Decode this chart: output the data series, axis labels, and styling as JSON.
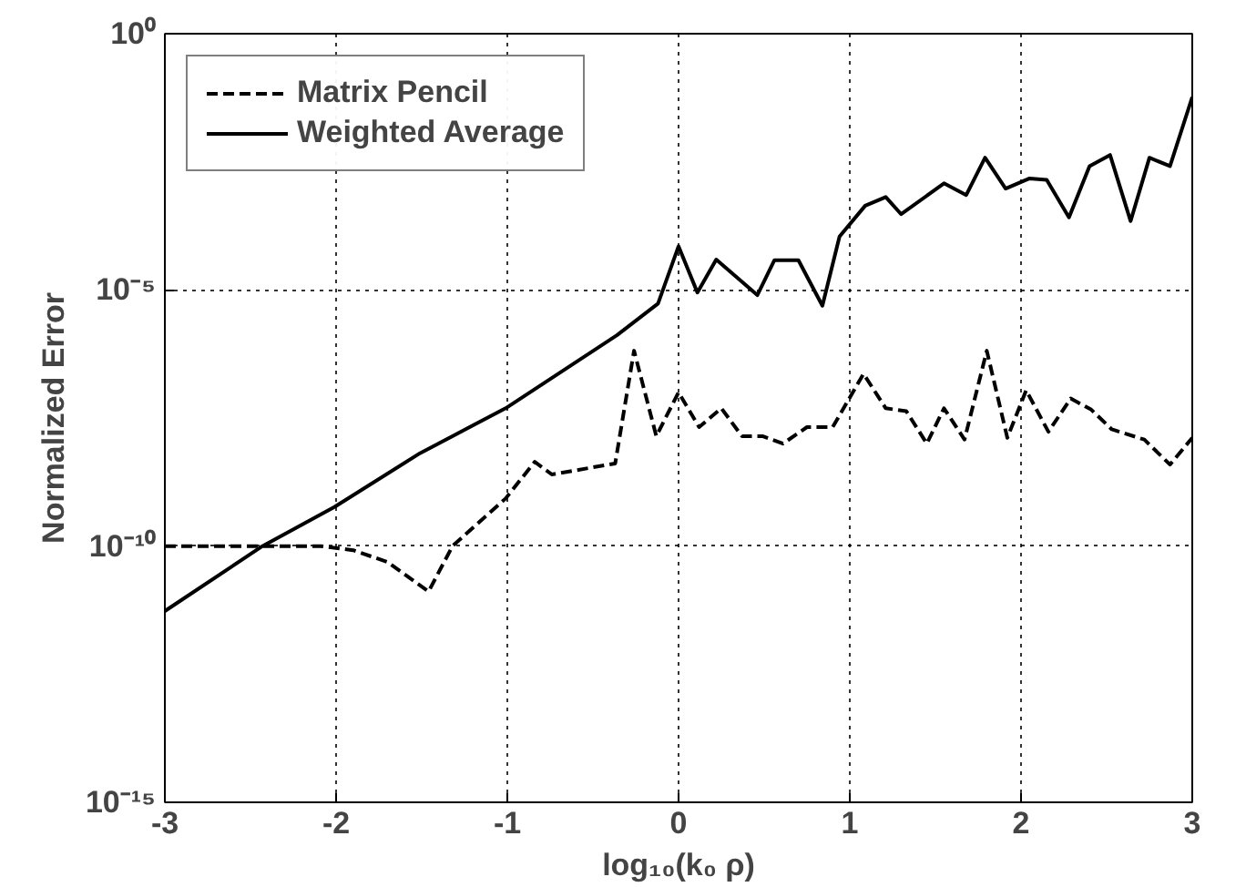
{
  "chart_data": {
    "type": "line",
    "xlabel": "log₁₀(k₀ ρ)",
    "ylabel": "Normalized Error",
    "log": "y",
    "grid": true,
    "legend": "top left",
    "xlim": [
      -3,
      3
    ],
    "xticks": [
      -3,
      -2,
      -1,
      0,
      1,
      2,
      3
    ],
    "ylim": [
      1e-15,
      1
    ],
    "yticks": [
      {
        "value": 1e-15,
        "label": "10⁻¹⁵"
      },
      {
        "value": 1e-10,
        "label": "10⁻¹⁰"
      },
      {
        "value": 1e-05,
        "label": "10⁻⁵"
      },
      {
        "value": 1,
        "label": "10⁰"
      }
    ],
    "series": [
      {
        "name": "Matrix Pencil",
        "color": "#000000",
        "line_style": "dashed",
        "x": [
          -3,
          -2.09,
          -1.9,
          -1.7,
          -1.46,
          -1.32,
          -1.01,
          -0.84,
          -0.74,
          -0.37,
          -0.26,
          -0.13,
          0.0,
          0.12,
          0.25,
          0.37,
          0.49,
          0.61,
          0.75,
          0.9,
          1.08,
          1.21,
          1.33,
          1.45,
          1.55,
          1.67,
          1.8,
          1.92,
          2.03,
          2.16,
          2.29,
          2.41,
          2.53,
          2.72,
          2.87,
          3.0
        ],
        "values": [
          1e-10,
          1e-10,
          8.3e-11,
          4.9e-11,
          1.3e-11,
          1e-10,
          8.5e-10,
          4.4e-09,
          2.5e-09,
          4.1e-09,
          6.5e-07,
          1.4e-08,
          1e-07,
          2.1e-08,
          4.9e-08,
          1.4e-08,
          1.4e-08,
          1e-08,
          2.1e-08,
          2.1e-08,
          2.3e-07,
          4.9e-08,
          4.3e-08,
          1e-08,
          4.9e-08,
          1.2e-08,
          6.5e-07,
          1.3e-08,
          1.1e-07,
          1.7e-08,
          7.6e-08,
          4.6e-08,
          1.9e-08,
          1.2e-08,
          3.9e-09,
          1.3e-08
        ]
      },
      {
        "name": "Weighted Average",
        "color": "#000000",
        "line_style": "solid",
        "x": [
          -3,
          -2.43,
          -2.01,
          -1.51,
          -1.01,
          -0.36,
          -0.12,
          0.0,
          0.11,
          0.22,
          0.46,
          0.56,
          0.7,
          0.84,
          0.94,
          1.09,
          1.21,
          1.3,
          1.55,
          1.68,
          1.79,
          1.91,
          2.05,
          2.15,
          2.28,
          2.4,
          2.52,
          2.64,
          2.75,
          2.87,
          3.0
        ],
        "values": [
          5.4e-12,
          1e-10,
          5.8e-10,
          6.5e-09,
          4.9e-08,
          1.3e-06,
          5.4e-06,
          7.1e-05,
          8.9e-06,
          3.9e-05,
          7.9e-06,
          3.8e-05,
          3.8e-05,
          4.9e-06,
          0.00011,
          0.00044,
          0.00065,
          0.0003,
          0.0012,
          0.00071,
          0.0038,
          0.00095,
          0.0015,
          0.0014,
          0.00026,
          0.0026,
          0.0043,
          0.00022,
          0.0038,
          0.0026,
          0.058
        ]
      }
    ]
  }
}
